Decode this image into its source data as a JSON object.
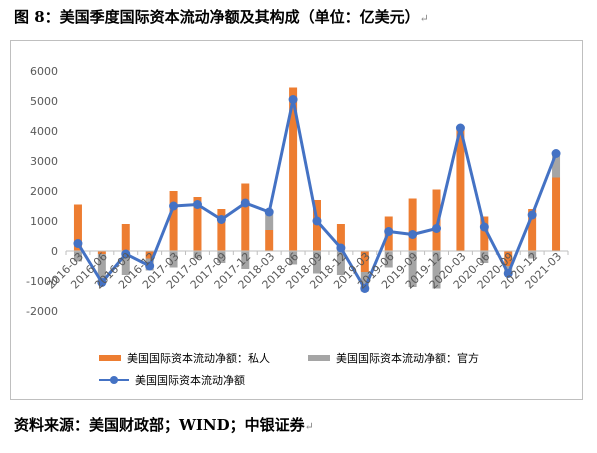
{
  "caption": {
    "title": "图 8：美国季度国际资本流动净额及其构成（单位：亿美元）",
    "mark": "↵"
  },
  "source": {
    "text": "资料来源：美国财政部；WIND；中银证券",
    "mark": "↵"
  },
  "chart_data": {
    "type": "bar",
    "title": "",
    "xlabel": "",
    "ylabel": "",
    "ylim": [
      -2000,
      6000
    ],
    "yticks": [
      -2000,
      -1000,
      0,
      1000,
      2000,
      3000,
      4000,
      5000,
      6000
    ],
    "grid": false,
    "legend_position": "bottom",
    "categories": [
      "2016-03",
      "2016-06",
      "2016-09",
      "2016-12",
      "2017-03",
      "2017-06",
      "2017-09",
      "2017-12",
      "2018-03",
      "2018-06",
      "2018-09",
      "2018-12",
      "2019-03",
      "2019-06",
      "2019-09",
      "2019-12",
      "2020-03",
      "2020-06",
      "2020-09",
      "2020-12",
      "2021-03"
    ],
    "xtick_labels": [
      "2016-03",
      "2016-06",
      "2016-09",
      "2016-12",
      "2017-03",
      "2017-06",
      "2017-09",
      "2017-12",
      "2018-03",
      "2018-06",
      "2018-09",
      "2018-12",
      "2019-03",
      "2019-06",
      "2019-09",
      "2019-12",
      "2020-03",
      "2020-06",
      "2020-09",
      "2020-12",
      "2021-03"
    ],
    "series": [
      {
        "name": "美国国际资本流动净额：私人",
        "kind": "bar",
        "color": "#ed7d31",
        "values": [
          1550,
          -100,
          900,
          -250,
          2000,
          1800,
          1400,
          2250,
          700,
          5450,
          1700,
          900,
          -700,
          1150,
          1750,
          2050,
          4100,
          1150,
          -500,
          1400,
          2450
        ]
      },
      {
        "name": "美国国际资本流动净额：官方",
        "kind": "bar",
        "color": "#a5a5a5",
        "values": [
          -350,
          -950,
          -800,
          -400,
          -550,
          -250,
          -400,
          -600,
          550,
          -450,
          -750,
          -800,
          -650,
          -550,
          -1200,
          -1250,
          0,
          -400,
          -250,
          -250,
          800
        ]
      },
      {
        "name": "美国国际资本流动净额",
        "kind": "line",
        "color": "#4472c4",
        "values": [
          250,
          -1050,
          -100,
          -500,
          1500,
          1550,
          1050,
          1600,
          1300,
          5050,
          1000,
          100,
          -1250,
          650,
          550,
          750,
          4100,
          800,
          -750,
          1200,
          3250
        ]
      }
    ]
  }
}
